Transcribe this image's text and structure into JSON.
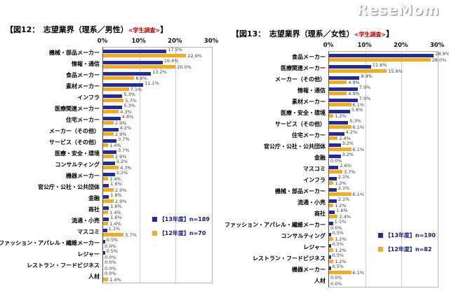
{
  "logo_text": "ReseMom",
  "colors": {
    "series_13": "#232a9f",
    "series_12": "#f2ac1c",
    "gridline": "#cfcfcf",
    "title_note_red": "#cc0000",
    "legend_text": "#16167d"
  },
  "axis": {
    "ticks": [
      "0%",
      "10%",
      "20%",
      "30%"
    ],
    "max_percent": 30
  },
  "charts": [
    {
      "title": "【図12：　志望業界（理系／男性）",
      "title_note": "<学生調査>",
      "title_close": "】",
      "legend": [
        {
          "label": "【13年度】n=189"
        },
        {
          "label": "【12年度】n=70"
        }
      ],
      "chart_data": {
        "type": "bar",
        "orientation": "horizontal",
        "xlim": [
          0,
          30
        ],
        "xticks": [
          "0%",
          "10%",
          "20%",
          "30%"
        ],
        "grid": true,
        "legend_position": "inside-lower-right",
        "categories": [
          "機械・部品メーカー",
          "情報・通信",
          "食品メーカー",
          "素材メーカー",
          "インフラ",
          "医療関連メーカー",
          "住宅メーカー",
          "メーカー（その他）",
          "サービス（その他）",
          "医療・安全・環境",
          "コンサルティング",
          "機器メーカー",
          "官公庁・公社・公共団体",
          "金融",
          "商社",
          "流通・小売",
          "マスコミ",
          "ファッション・アパレル・繊維メーカー",
          "レジャー",
          "レストラン・フードビジネス",
          "人材"
        ],
        "series": [
          {
            "name": "【13年度】n=189",
            "key": "13nendo",
            "values": [
              17.5,
              16.4,
              13.2,
              11.1,
              5.3,
              5.3,
              4.8,
              4.2,
              3.7,
              3.7,
              3.2,
              3.2,
              1.6,
              1.6,
              1.6,
              1.6,
              1.1,
              0.5,
              0.5,
              0.0,
              0.0
            ]
          },
          {
            "name": "【12年度】n=70",
            "key": "12nendo",
            "values": [
              22.9,
              20.0,
              8.6,
              7.1,
              5.7,
              4.3,
              2.9,
              2.9,
              1.4,
              2.9,
              4.3,
              1.4,
              2.9,
              2.9,
              1.4,
              1.4,
              5.7,
              0.0,
              0.0,
              0.0,
              1.4
            ]
          }
        ]
      }
    },
    {
      "title": "【図13：　志望業界（理系／女性）",
      "title_note": "<学生調査>",
      "title_close": "】",
      "legend": [
        {
          "label": "【13年度】n=190"
        },
        {
          "label": "【12年度】n=82"
        }
      ],
      "chart_data": {
        "type": "bar",
        "orientation": "horizontal",
        "xlim": [
          0,
          30
        ],
        "xticks": [
          "0%",
          "10%",
          "20%",
          "30%"
        ],
        "grid": true,
        "legend_position": "inside-lower-right",
        "categories": [
          "食品メーカー",
          "医療関連メーカー",
          "メーカー（その他）",
          "情報・通信",
          "素材メーカー",
          "医療・安全・環境",
          "サービス（その他）",
          "住宅メーカー",
          "官公庁・公社・公共団体",
          "金融",
          "マスコミ",
          "インフラ",
          "機械・部品メーカー",
          "流通・小売",
          "商社",
          "ファッション・アパレル・繊維メーカー",
          "コンサルティング",
          "レジャー",
          "レストラン・フードビジネス",
          "機器メーカー",
          "人材"
        ],
        "series": [
          {
            "name": "【13年度】n=190",
            "key": "13nendo",
            "values": [
              28.9,
              11.6,
              8.4,
              7.9,
              7.9,
              5.8,
              5.3,
              4.2,
              3.2,
              3.2,
              2.6,
              2.1,
              2.1,
              2.1,
              1.6,
              1.1,
              0.5,
              0.5,
              0.5,
              0.5,
              0.0
            ]
          },
          {
            "name": "【12年度】n=82",
            "key": "12nendo",
            "values": [
              28.0,
              15.9,
              4.9,
              4.9,
              6.1,
              1.2,
              6.1,
              2.4,
              6.1,
              0.0,
              3.7,
              1.2,
              6.1,
              1.2,
              2.4,
              0.0,
              1.2,
              1.2,
              1.2,
              6.1,
              0.0
            ]
          }
        ]
      }
    }
  ]
}
